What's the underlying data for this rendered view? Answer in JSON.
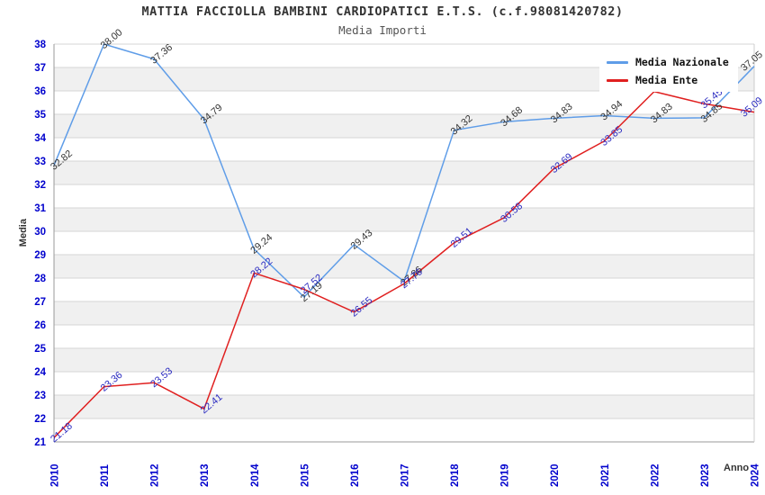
{
  "title": "MATTIA FACCIOLLA BAMBINI CARDIOPATICI E.T.S. (c.f.98081420782)",
  "subtitle": "Media Importi",
  "legend": {
    "items": [
      {
        "label": "Media Nazionale",
        "color": "#5f9de8"
      },
      {
        "label": "Media Ente",
        "color": "#e02020"
      }
    ]
  },
  "axes": {
    "y_title": "Media",
    "x_title": "Anno",
    "tick_color": "#0000cd",
    "gridline_color": "#d6d6d6",
    "band_color": "#f0f0f0"
  },
  "chart_data": {
    "type": "line",
    "title": "MATTIA FACCIOLLA BAMBINI CARDIOPATICI E.T.S. (c.f.98081420782)",
    "subtitle": "Media Importi",
    "xlabel": "Anno",
    "ylabel": "Media",
    "ylim": [
      21,
      38
    ],
    "grid": true,
    "legend_position": "top-right",
    "x": [
      "2010",
      "2011",
      "2012",
      "2013",
      "2014",
      "2015",
      "2016",
      "2017",
      "2018",
      "2019",
      "2020",
      "2021",
      "2022",
      "2023",
      "2024"
    ],
    "series": [
      {
        "name": "Media Nazionale",
        "color": "#5f9de8",
        "label_color": "#333333",
        "values": [
          32.82,
          38.0,
          37.36,
          34.79,
          29.24,
          27.19,
          29.43,
          27.86,
          34.32,
          34.68,
          34.83,
          34.94,
          34.83,
          34.85,
          37.05
        ],
        "labels": [
          "32.82",
          "38.00",
          "37.36",
          "34.79",
          "29.24",
          "27.19",
          "29.43",
          "27.86",
          "34.32",
          "34.68",
          "34.83",
          "34.94",
          "34.83",
          "34.85",
          "37.05"
        ]
      },
      {
        "name": "Media Ente",
        "color": "#e02020",
        "label_color": "#2a2ac0",
        "values": [
          21.18,
          23.36,
          23.53,
          22.41,
          28.22,
          27.52,
          26.55,
          27.76,
          29.51,
          30.58,
          32.69,
          33.85,
          35.97,
          35.45,
          35.09
        ],
        "labels": [
          "21.18",
          "23.36",
          "23.53",
          "22.41",
          "28.22",
          "27.52",
          "26.55",
          "27.76",
          "29.51",
          "30.58",
          "32.69",
          "33.85",
          "",
          "35.45",
          "35.09"
        ]
      }
    ]
  }
}
